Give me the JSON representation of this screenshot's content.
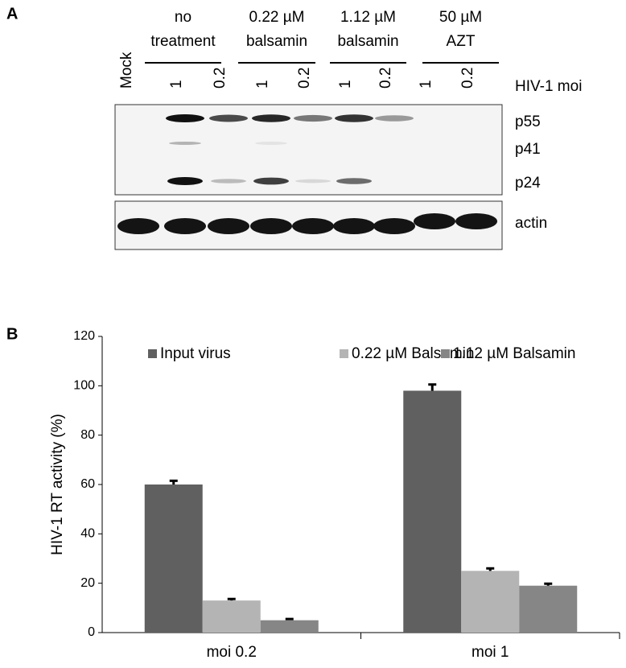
{
  "panel_a": {
    "panel_label": "A",
    "groups": [
      [
        "no",
        "treatment"
      ],
      [
        "0.22 µM",
        "balsamin"
      ],
      [
        "1.12 µM",
        "balsamin"
      ],
      [
        "50 µM",
        "AZT"
      ]
    ],
    "lanes": [
      "Mock",
      "1",
      "0.2",
      "1",
      "0.2",
      "1",
      "0.2",
      "1",
      "0.2"
    ],
    "moi_label": "HIV-1 moi",
    "bands": [
      "p55",
      "p41",
      "p24"
    ],
    "loading_label": "actin"
  },
  "chart_data": {
    "type": "bar",
    "panel_label": "B",
    "y_label": "HIV-1 RT activity (%)",
    "categories": [
      "moi 0.2",
      "moi 1"
    ],
    "series": [
      {
        "name": "Input virus",
        "color": "#606060",
        "values": [
          60,
          98
        ],
        "errors": [
          1.5,
          2.5
        ]
      },
      {
        "name": "0.22 µM Balsamin",
        "color": "#b4b4b4",
        "values": [
          13,
          25
        ],
        "errors": [
          0.6,
          1
        ]
      },
      {
        "name": "1.12 µM Balsamin",
        "color": "#868686",
        "values": [
          5,
          19
        ],
        "errors": [
          0.5,
          0.8
        ]
      }
    ],
    "ylim": [
      0,
      120
    ],
    "yticks": [
      0,
      20,
      40,
      60,
      80,
      100,
      120
    ],
    "grid": false,
    "legend": "top"
  }
}
